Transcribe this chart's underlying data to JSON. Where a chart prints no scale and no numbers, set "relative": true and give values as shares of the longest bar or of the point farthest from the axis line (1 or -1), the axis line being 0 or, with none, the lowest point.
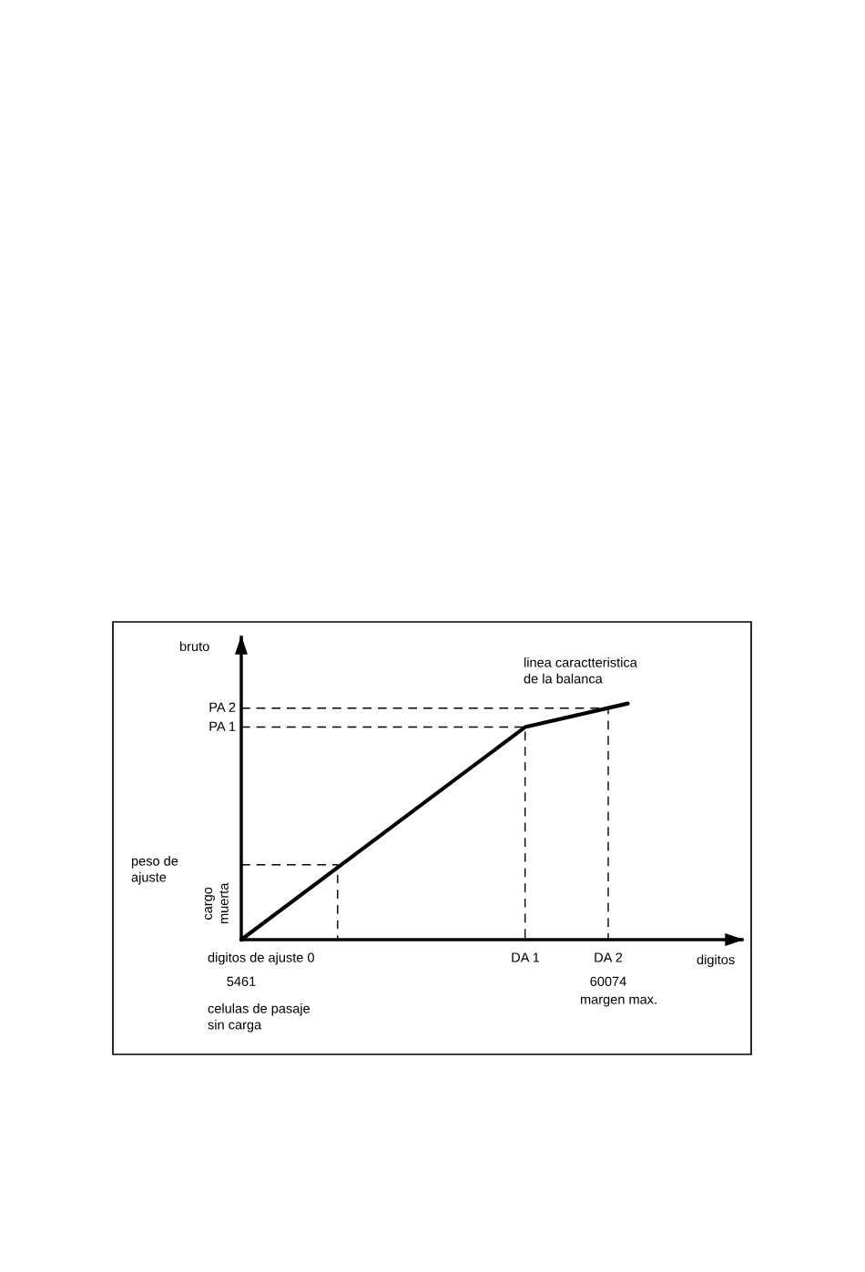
{
  "chart_data": {
    "type": "line",
    "relative": true,
    "xlabel": "digitos",
    "ylabel": "bruto",
    "xlim": [
      5461,
      80000
    ],
    "xticks": [
      5461,
      60074
    ],
    "series": [
      {
        "color": "#000000",
        "x": [
          5461,
          47700,
          63000
        ],
        "values": [
          0,
          0.9,
          1.0
        ],
        "line_style": "solid"
      },
      {
        "color": "#000000",
        "x": [
          5461,
          19800,
          19800
        ],
        "values": [
          0.317,
          0.317,
          0
        ],
        "line_style": "dashed"
      },
      {
        "color": "#000000",
        "x": [
          5461,
          47700,
          47700
        ],
        "values": [
          0.9,
          0.9,
          0
        ],
        "line_style": "dashed"
      },
      {
        "color": "#000000",
        "x": [
          5461,
          60074,
          60074
        ],
        "values": [
          0.98,
          0.98,
          0
        ],
        "line_style": "dashed"
      }
    ],
    "annotations": [
      "PA 2",
      "PA 1",
      "DA 1",
      "DA 2",
      "linea caractteristica\nde la balanca",
      "peso de\najuste",
      "cargo\nmuerta",
      "digitos de ajuste 0",
      "celulas de pasaje\nsin carga",
      "margen max."
    ]
  }
}
